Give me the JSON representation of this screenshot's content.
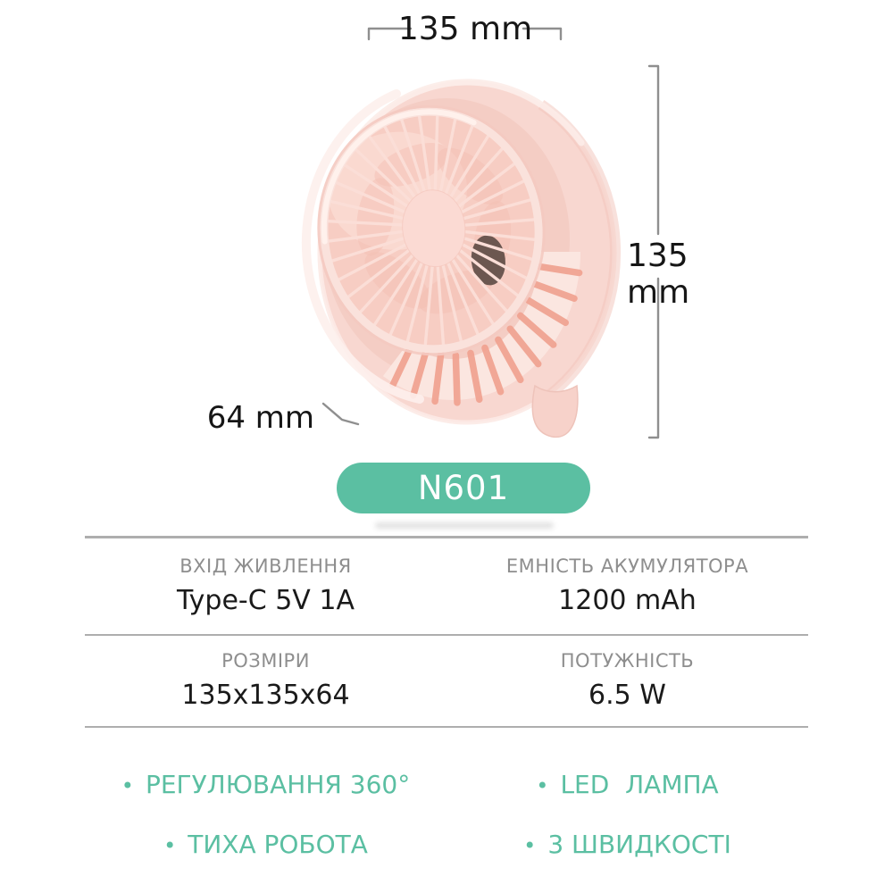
{
  "colors": {
    "accent": "#5bbfa2",
    "badge_text": "#ffffff",
    "separator_line": "#aeaeae",
    "spec_label": "#8e8e8e",
    "spec_value": "#1a1a1a",
    "annotation_line": "#8f8f8f",
    "annotation_text": "#161616",
    "fan_body_pink": "#f8d7d0",
    "fan_grille_pink": "#f7cdc3",
    "fan_slat_pink": "#f0a290"
  },
  "annotations": {
    "width_label": "135 mm",
    "height_label": "135 mm",
    "depth_label": "64 mm"
  },
  "badge": {
    "model": "N601"
  },
  "specs": {
    "rows": [
      {
        "left": {
          "label": "ВХІД ЖИВЛЕННЯ",
          "value": "Type-C 5V 1A"
        },
        "right": {
          "label": "ЕМНІСТЬ АКУМУЛЯТОРА",
          "value": "1200 mAh"
        }
      },
      {
        "left": {
          "label": "РОЗМІРИ",
          "value": "135x135x64"
        },
        "right": {
          "label": "ПОТУЖНІСТЬ",
          "value": "6.5 W"
        }
      }
    ]
  },
  "features": {
    "bullet": "•",
    "items": [
      "РЕГУЛЮВАННЯ 360°",
      "LED  ЛАМПА",
      "ТИХА РОБОТА",
      "3 ШВИДКОСТІ"
    ]
  }
}
